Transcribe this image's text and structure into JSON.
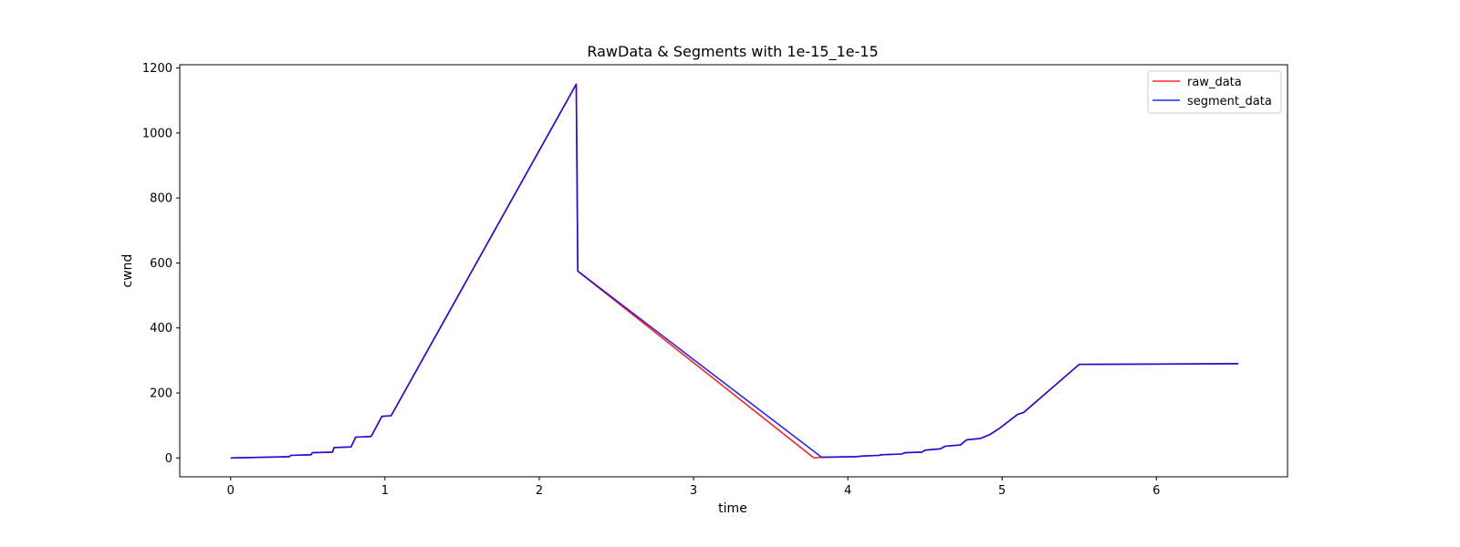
{
  "chart_data": {
    "type": "line",
    "title": "RawData & Segments with 1e-15_1e-15",
    "xlabel": "time",
    "ylabel": "cwnd",
    "xlim": [
      -0.33,
      6.85
    ],
    "ylim": [
      -58,
      1210
    ],
    "xticks": [
      0,
      1,
      2,
      3,
      4,
      5,
      6
    ],
    "yticks": [
      0,
      200,
      400,
      600,
      800,
      1000,
      1200
    ],
    "grid": false,
    "legend_position": "top-right",
    "series": [
      {
        "name": "raw_data",
        "color": "#ff0000",
        "x": [
          0,
          0.38,
          0.39,
          0.52,
          0.53,
          0.66,
          0.67,
          0.78,
          0.81,
          0.91,
          0.98,
          1.04,
          2.24,
          2.25,
          3.78,
          3.82,
          4.05,
          4.1,
          4.2,
          4.22,
          4.35,
          4.37,
          4.48,
          4.5,
          4.6,
          4.63,
          4.73,
          4.77,
          4.86,
          4.92,
          4.98,
          5.1,
          5.14,
          5.5,
          6.53
        ],
        "y": [
          0,
          4,
          8,
          10,
          16,
          18,
          32,
          34,
          64,
          66,
          128,
          130,
          1150,
          575,
          0,
          2,
          4,
          6,
          8,
          10,
          12,
          16,
          18,
          24,
          28,
          36,
          40,
          56,
          60,
          72,
          90,
          134,
          140,
          288,
          290
        ]
      },
      {
        "name": "segment_data",
        "color": "#0000ff",
        "x": [
          0,
          0.38,
          0.39,
          0.52,
          0.53,
          0.66,
          0.67,
          0.78,
          0.81,
          0.91,
          0.98,
          1.04,
          2.24,
          2.25,
          3.83,
          4.05,
          4.1,
          4.2,
          4.22,
          4.35,
          4.37,
          4.48,
          4.5,
          4.6,
          4.63,
          4.73,
          4.77,
          4.86,
          4.92,
          4.98,
          5.1,
          5.14,
          5.5,
          6.53
        ],
        "y": [
          0,
          4,
          8,
          10,
          16,
          18,
          32,
          34,
          64,
          66,
          128,
          130,
          1150,
          575,
          2,
          4,
          6,
          8,
          10,
          12,
          16,
          18,
          24,
          28,
          36,
          40,
          56,
          60,
          72,
          90,
          134,
          140,
          288,
          290
        ]
      }
    ]
  }
}
